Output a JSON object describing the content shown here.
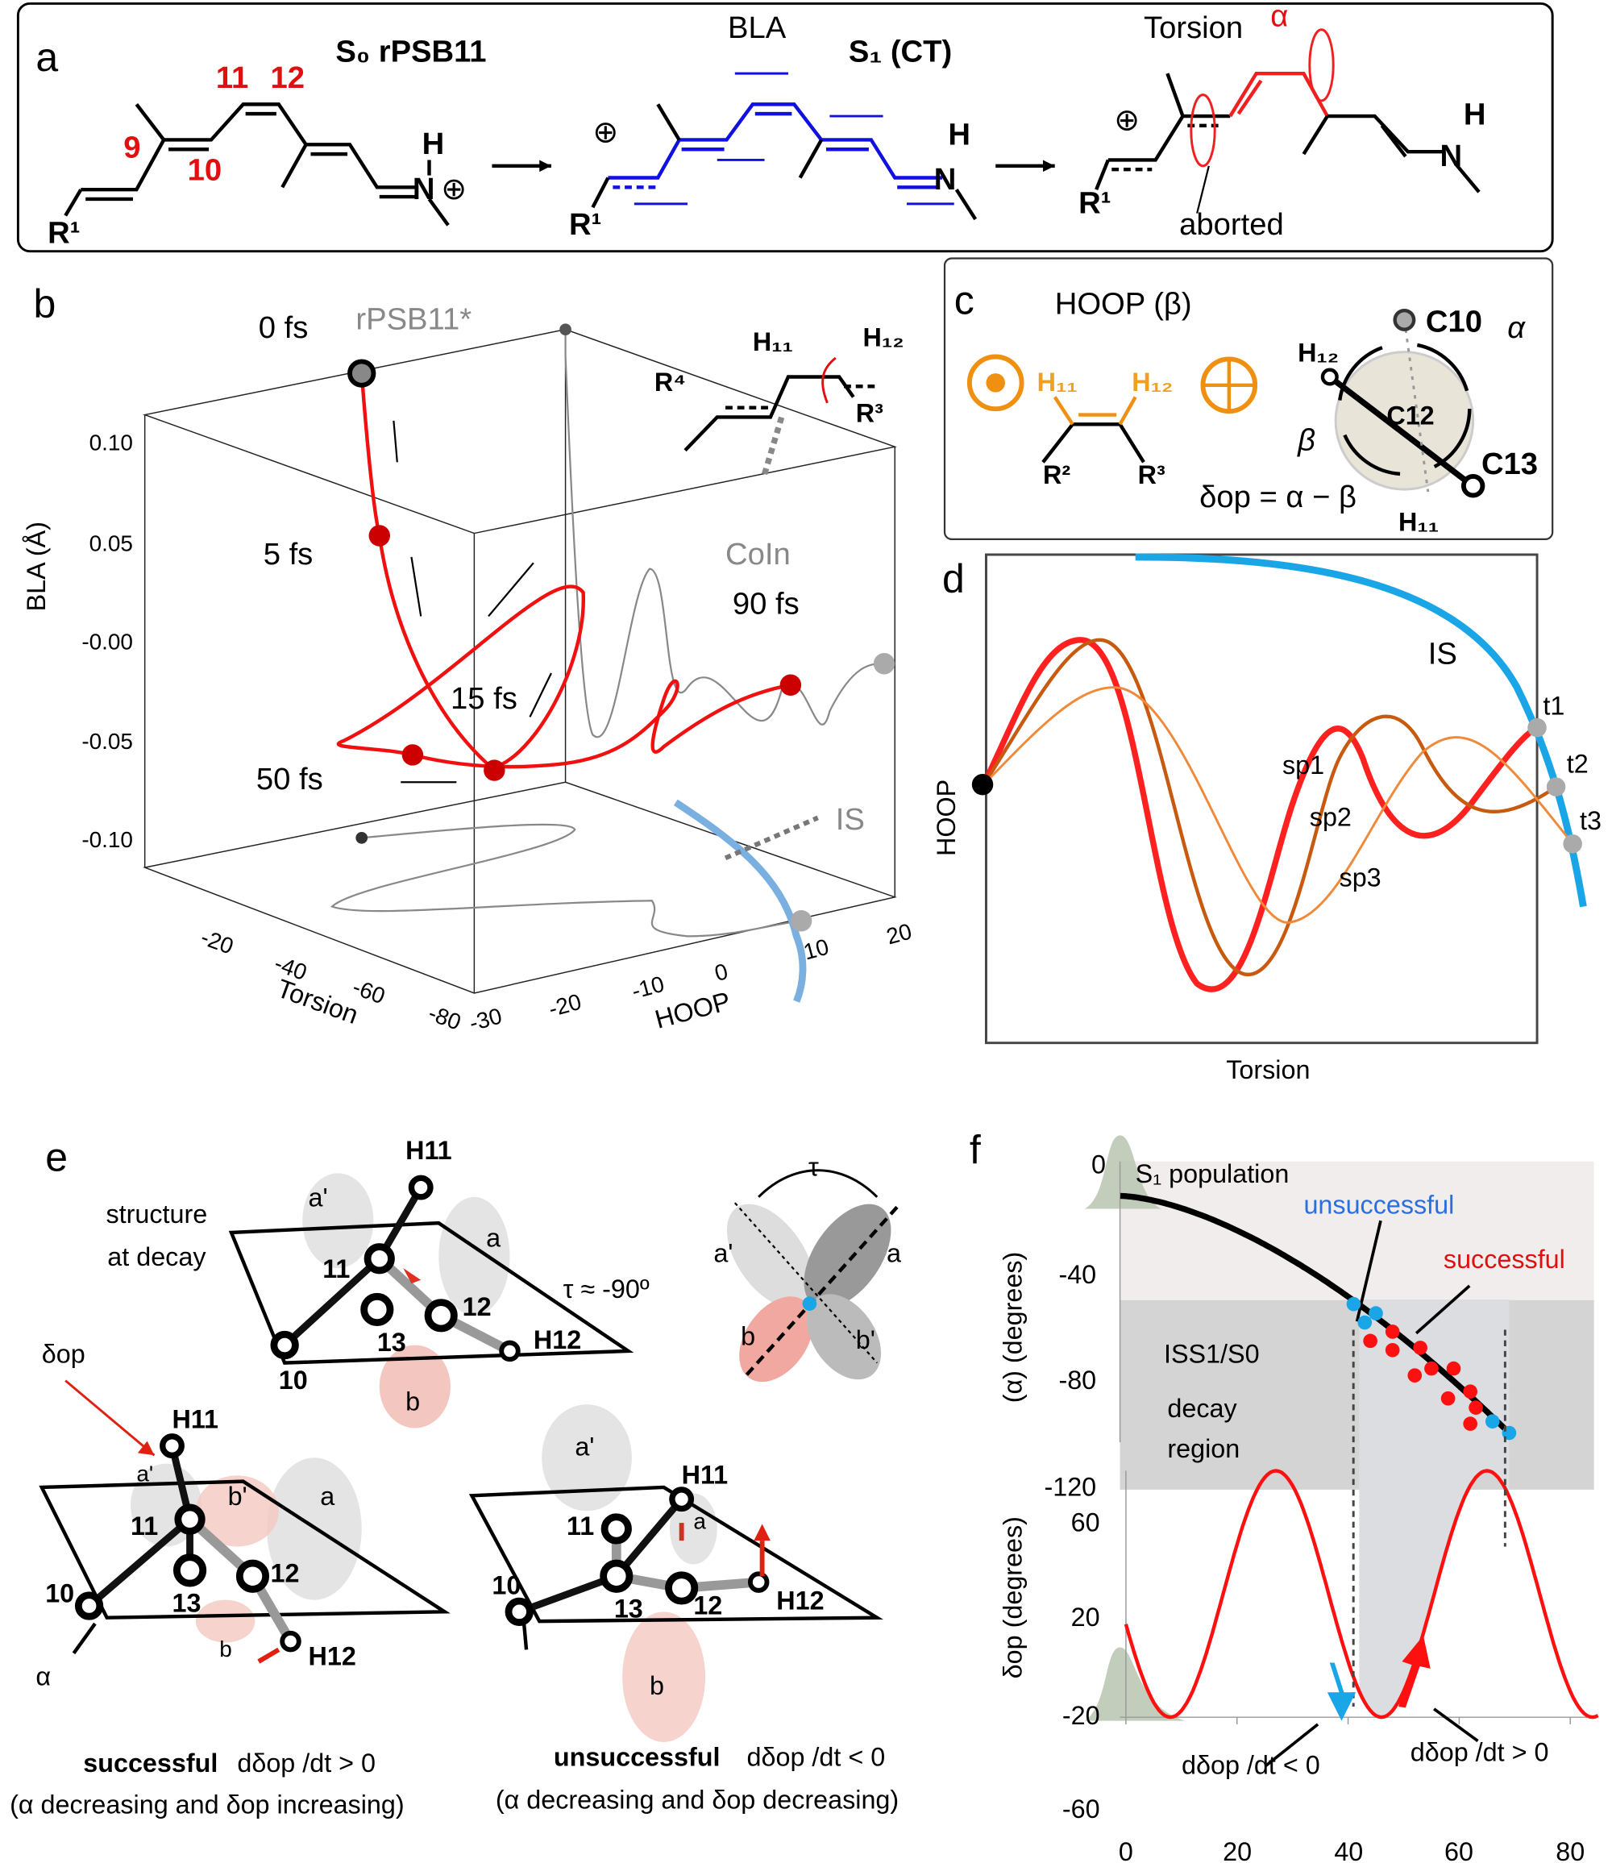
{
  "panel_a": {
    "label": "a",
    "s0_title": "S₀ rPSB11",
    "s1_title": "S₁ (CT)",
    "bla": "BLA",
    "torsion": "Torsion",
    "alpha": "α",
    "aborted": "aborted",
    "atom_numbers": [
      "9",
      "10",
      "11",
      "12"
    ],
    "r1": "R¹",
    "n": "N",
    "h": "H",
    "plus": "⊕"
  },
  "panel_b": {
    "label": "b",
    "ylabel": "BLA (Å)",
    "yticks": [
      "0.10",
      "0.05",
      "-0.00",
      "-0.05",
      "-0.10"
    ],
    "torsion_label": "Torsion",
    "torsion_ticks": [
      "-20",
      "-40",
      "-60",
      "-80"
    ],
    "hoop_label": "HOOP",
    "hoop_ticks": [
      "-30",
      "-20",
      "-10",
      "0",
      "10",
      "20"
    ],
    "start_label": "rPSB11*",
    "time_labels": [
      "0 fs",
      "5 fs",
      "15 fs",
      "50 fs",
      "90 fs"
    ],
    "coin": "CoIn",
    "is": "IS",
    "h11": "H₁₁",
    "h12": "H₁₂",
    "r4": "R⁴",
    "r3": "R³"
  },
  "panel_c": {
    "label": "c",
    "title": "HOOP (β)",
    "h11": "H₁₁",
    "h12": "H₁₂",
    "r2": "R²",
    "r3": "R³",
    "c10": "C10",
    "c12": "C12",
    "c13": "C13",
    "alpha": "α",
    "beta": "β",
    "equation": "δop = α − β"
  },
  "panel_d": {
    "label": "d",
    "xlabel": "Torsion",
    "ylabel": "HOOP",
    "is": "IS",
    "paths": [
      "sp1",
      "sp2",
      "sp3"
    ],
    "points": [
      "t1",
      "t2",
      "t3"
    ],
    "colors": {
      "sp1": "#ff2020",
      "sp2": "#c85a10",
      "sp3": "#f08a3a",
      "is": "#1aa6e6"
    }
  },
  "panel_e": {
    "label": "e",
    "structure_label_1": "structure",
    "structure_label_2": "at decay",
    "tau_eq": "τ ≈ -90º",
    "tau": "τ",
    "delta_op": "δop",
    "alpha": "α",
    "atoms": [
      "H11",
      "11",
      "12",
      "13",
      "10",
      "H12"
    ],
    "lobes": [
      "a",
      "a'",
      "b",
      "b'"
    ],
    "successful_bold": "successful",
    "successful_cond": "dδop /dt > 0",
    "successful_note": "(α decreasing and δop increasing)",
    "unsuccessful_bold": "unsuccessful",
    "unsuccessful_cond": "dδop /dt < 0",
    "unsuccessful_note": "(α decreasing and δop decreasing)"
  },
  "panel_f": {
    "label": "f",
    "top_ylabel": "(α) (degrees)",
    "top_yticks": [
      "0",
      "-40",
      "-80",
      "-120"
    ],
    "bottom_ylabel": "δop (degrees)",
    "bottom_yticks": [
      "60",
      "20",
      "-20",
      "-60"
    ],
    "xticks": [
      "0",
      "20",
      "40",
      "60",
      "80"
    ],
    "population": "S₁ population",
    "unsuccessful": "unsuccessful",
    "successful": "successful",
    "region_1": "ISS1/S0",
    "region_2": "decay",
    "region_3": "region",
    "neg_label": "dδop /dt < 0",
    "pos_label": "dδop /dt > 0",
    "colors": {
      "successful": "#ff1010",
      "unsuccessful": "#1aa6e6",
      "curve": "#000000",
      "sine": "#ff1010"
    }
  },
  "chart_data": {
    "type": "scatter",
    "xticks": [
      0,
      20,
      40,
      60,
      80
    ],
    "xlim": [
      0,
      85
    ],
    "top": {
      "ylabel": "(α) (degrees)",
      "ylim": [
        -120,
        0
      ],
      "curve": [
        [
          -1,
          -15
        ],
        [
          20,
          -27
        ],
        [
          42,
          -62
        ],
        [
          69,
          -118
        ]
      ],
      "unsuccessful": [
        [
          41,
          -62
        ],
        [
          43,
          -70
        ],
        [
          45,
          -66
        ],
        [
          66,
          -113
        ],
        [
          69,
          -118
        ]
      ],
      "successful": [
        [
          44,
          -78
        ],
        [
          48,
          -74
        ],
        [
          48,
          -82
        ],
        [
          53,
          -81
        ],
        [
          52,
          -93
        ],
        [
          55,
          -90
        ],
        [
          58,
          -103
        ],
        [
          59,
          -90
        ],
        [
          62,
          -100
        ],
        [
          63,
          -107
        ],
        [
          62,
          -114
        ]
      ],
      "decay_region": [
        -60,
        -123
      ]
    },
    "bottom": {
      "ylabel": "δop (degrees)",
      "ylim": [
        -60,
        60
      ],
      "sine": {
        "amplitude": 60,
        "period": 38,
        "peak_at": 27
      }
    },
    "decay_window": [
      42,
      69
    ]
  }
}
